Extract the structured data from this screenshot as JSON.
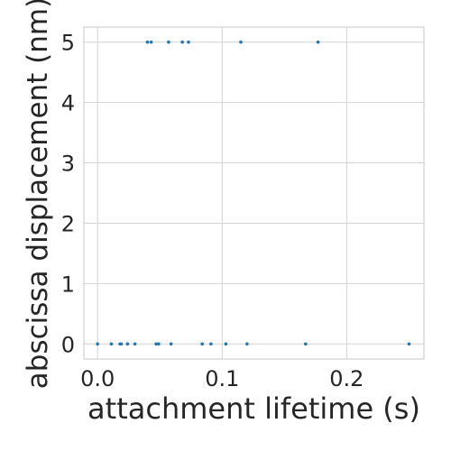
{
  "chart_data": {
    "type": "scatter",
    "title": "",
    "xlabel": "attachment lifetime (s)",
    "ylabel": "abscissa displacement (nm)",
    "xlim": [
      -0.011,
      0.262
    ],
    "ylim": [
      -0.25,
      5.25
    ],
    "xticks": [
      0.0,
      0.1,
      0.2
    ],
    "xtick_labels": [
      "0.0",
      "0.1",
      "0.2"
    ],
    "yticks": [
      0,
      1,
      2,
      3,
      4,
      5
    ],
    "ytick_labels": [
      "0",
      "1",
      "2",
      "3",
      "4",
      "5"
    ],
    "grid": true,
    "marker_color": "#1f77b4",
    "series": [
      {
        "points": [
          {
            "x": 0.0,
            "y": 0
          },
          {
            "x": 0.011,
            "y": 0
          },
          {
            "x": 0.018,
            "y": 0
          },
          {
            "x": 0.019,
            "y": 0
          },
          {
            "x": 0.024,
            "y": 0
          },
          {
            "x": 0.03,
            "y": 0
          },
          {
            "x": 0.047,
            "y": 0
          },
          {
            "x": 0.049,
            "y": 0
          },
          {
            "x": 0.059,
            "y": 0
          },
          {
            "x": 0.084,
            "y": 0
          },
          {
            "x": 0.091,
            "y": 0
          },
          {
            "x": 0.103,
            "y": 0
          },
          {
            "x": 0.12,
            "y": 0
          },
          {
            "x": 0.167,
            "y": 0
          },
          {
            "x": 0.25,
            "y": 0
          },
          {
            "x": 0.04,
            "y": 5
          },
          {
            "x": 0.043,
            "y": 5
          },
          {
            "x": 0.057,
            "y": 5
          },
          {
            "x": 0.068,
            "y": 5
          },
          {
            "x": 0.073,
            "y": 5
          },
          {
            "x": 0.115,
            "y": 5
          },
          {
            "x": 0.177,
            "y": 5
          }
        ]
      }
    ]
  }
}
